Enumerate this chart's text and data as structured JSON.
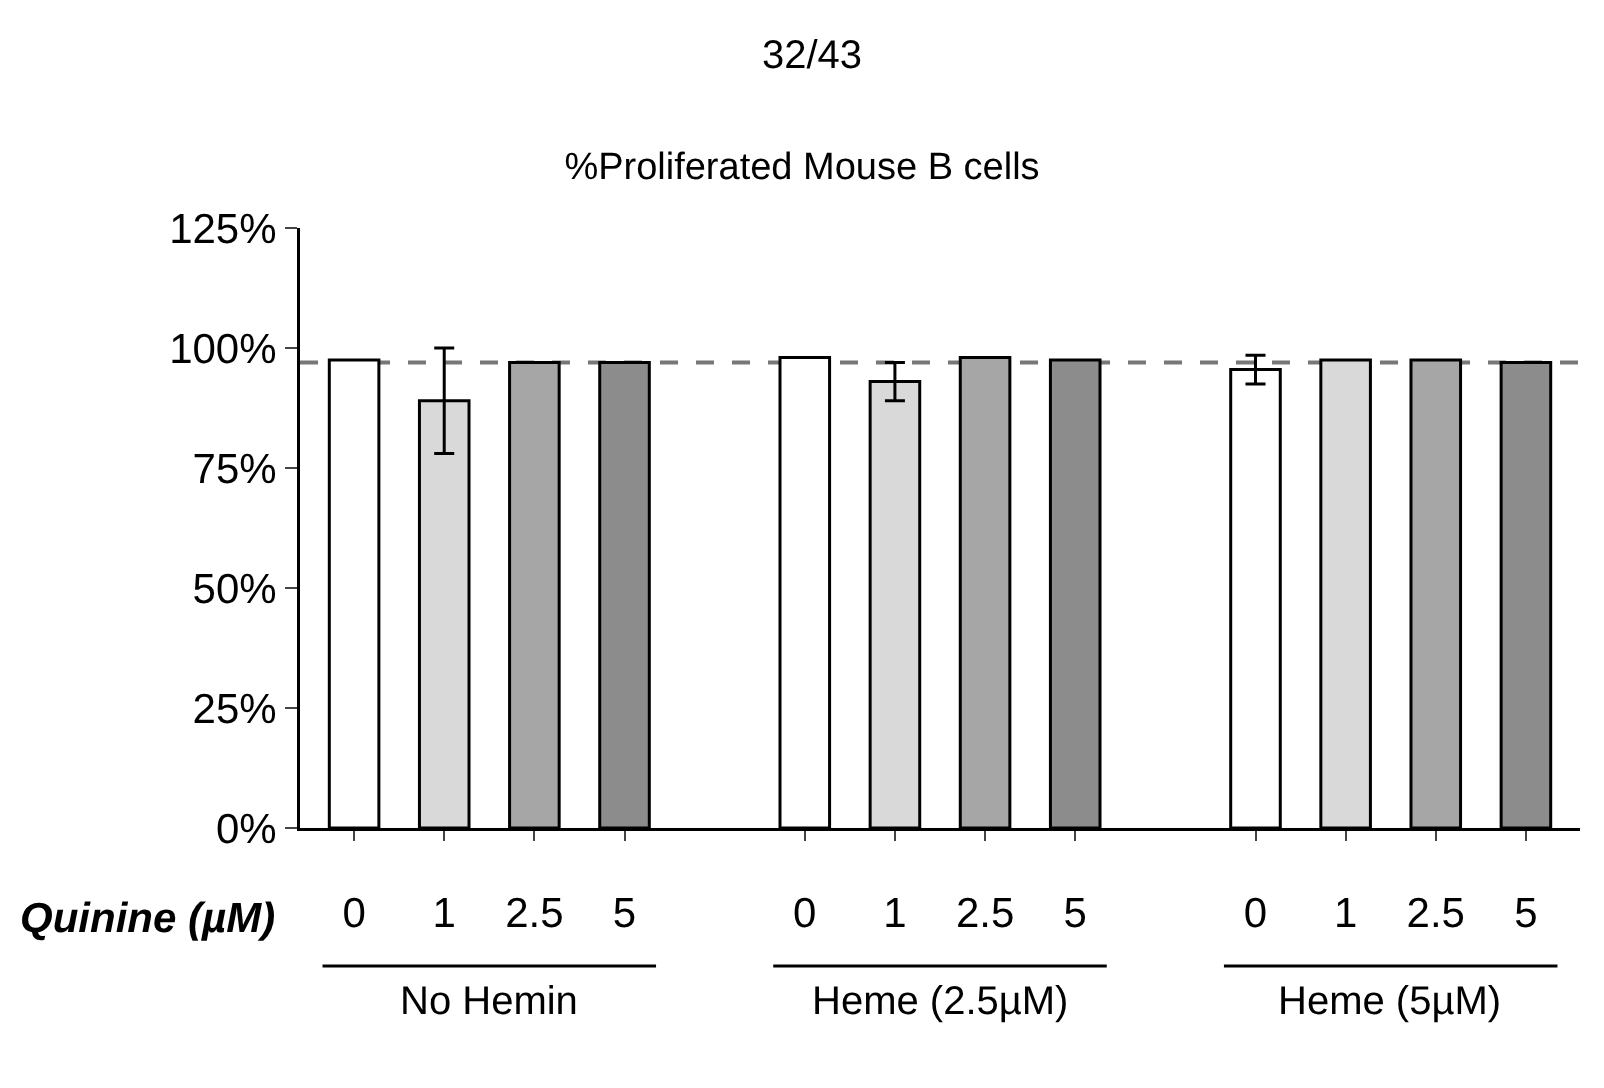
{
  "chart_data": {
    "type": "bar",
    "title": "%Proliferated Mouse B cells",
    "xlabel": "Quinine (µM)",
    "categories": [
      "0",
      "1",
      "2.5",
      "5",
      null,
      "0",
      "1",
      "2.5",
      "5",
      null,
      "0",
      "1",
      "2.5",
      "5"
    ],
    "values": [
      97.5,
      89,
      97,
      97,
      null,
      98,
      93,
      98,
      97.5,
      null,
      95.5,
      97.5,
      97.5,
      97
    ],
    "errors": [
      null,
      11,
      null,
      null,
      null,
      null,
      4,
      null,
      null,
      null,
      3,
      null,
      null,
      null
    ],
    "colors": [
      "#ffffff",
      "#d9d9d9",
      "#a6a6a6",
      "#8c8c8c",
      "#ffffff",
      "#ffffff",
      "#d9d9d9",
      "#a6a6a6",
      "#8c8c8c",
      "#ffffff",
      "#ffffff",
      "#d9d9d9",
      "#a6a6a6",
      "#8c8c8c"
    ],
    "ylim": [
      0,
      125
    ],
    "yticks": [
      {
        "value": 0,
        "label": "0%"
      },
      {
        "value": 25,
        "label": "25%"
      },
      {
        "value": 50,
        "label": "50%"
      },
      {
        "value": 75,
        "label": "75%"
      },
      {
        "value": 100,
        "label": "100%"
      },
      {
        "value": 125,
        "label": "125%"
      }
    ],
    "ref_lines": [
      {
        "axis": "y",
        "value": 97,
        "label": null,
        "color": "#777777",
        "line_style": "dashed"
      }
    ],
    "annotations": [
      "32/43",
      "No Hemin",
      "Heme (2.5µM)",
      "Heme (5µM)"
    ],
    "grid": false
  }
}
